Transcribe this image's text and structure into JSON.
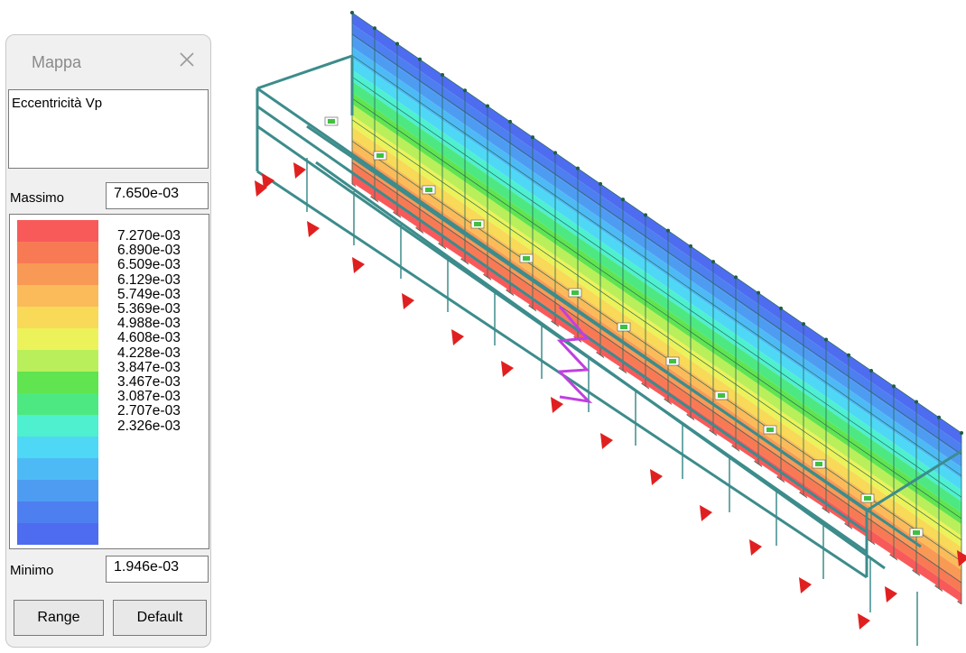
{
  "panel": {
    "title": "Mappa",
    "quantity": "Eccentricità Vp",
    "max_label": "Massimo",
    "max_value": "7.650e-03",
    "min_label": "Minimo",
    "min_value": "1.946e-03",
    "legend_values": [
      "7.270e-03",
      "6.890e-03",
      "6.509e-03",
      "6.129e-03",
      "5.749e-03",
      "5.369e-03",
      "4.988e-03",
      "4.608e-03",
      "4.228e-03",
      "3.847e-03",
      "3.467e-03",
      "3.087e-03",
      "2.707e-03",
      "2.326e-03"
    ],
    "legend_colors": [
      "#f85a5a",
      "#f87a55",
      "#f89a55",
      "#fbbb5a",
      "#f8d958",
      "#ecf25a",
      "#b9ef5a",
      "#60e450",
      "#4ee882",
      "#4ef0d0",
      "#4ed8f5",
      "#4ebaf5",
      "#4e9cf2",
      "#4e7ff0",
      "#4e6cf0"
    ],
    "range_button": "Range",
    "default_button": "Default",
    "close_icon": "close-icon"
  }
}
